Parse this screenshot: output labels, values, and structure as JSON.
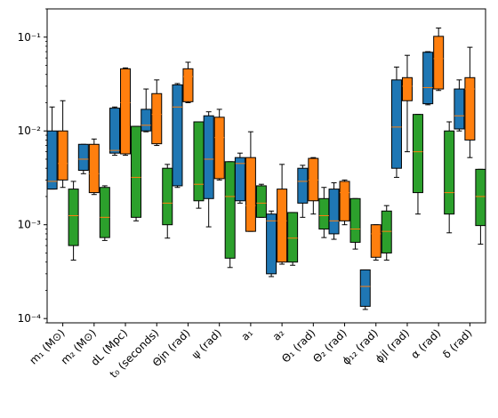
{
  "chart_data": {
    "type": "box",
    "title": "",
    "xlabel": "",
    "ylabel": "",
    "yscale": "log",
    "ylim": [
      9e-05,
      0.2
    ],
    "y_ticks": [
      {
        "value": 0.0001,
        "label": "10⁻⁴"
      },
      {
        "value": 0.001,
        "label": "10⁻³"
      },
      {
        "value": 0.01,
        "label": "10⁻²"
      },
      {
        "value": 0.1,
        "label": "10⁻¹"
      }
    ],
    "grid": false,
    "legend": "none",
    "categories": [
      "m₁ (M⊙)",
      "m₂ (M⊙)",
      "dL (Mpc)",
      "t₀ (seconds)",
      "Θjn (rad)",
      "ψ (rad)",
      "a₁",
      "a₂",
      "Θ₁ (rad)",
      "Θ₂ (rad)",
      "ϕ₁₂ (rad)",
      "ϕjl (rad)",
      "α (rad)",
      "δ (rad)"
    ],
    "colors": [
      "#1f77b4",
      "#ff7f0e",
      "#2ca02c"
    ],
    "median_color": "#ff7f0e",
    "series": [
      {
        "boxes": [
          {
            "wl": 0.0024,
            "q1": 0.0024,
            "med": 0.0029,
            "q3": 0.01,
            "wh": 0.018
          },
          {
            "wl": 0.0035,
            "q1": 0.0038,
            "med": 0.005,
            "q3": 0.0072,
            "wh": 0.0072
          },
          {
            "wl": 0.0055,
            "q1": 0.0058,
            "med": 0.0062,
            "q3": 0.0175,
            "wh": 0.018
          },
          {
            "wl": 0.0098,
            "q1": 0.01,
            "med": 0.0115,
            "q3": 0.017,
            "wh": 0.028
          },
          {
            "wl": 0.0025,
            "q1": 0.0026,
            "med": 0.018,
            "q3": 0.031,
            "wh": 0.032
          },
          {
            "wl": 0.00095,
            "q1": 0.0019,
            "med": 0.005,
            "q3": 0.0145,
            "wh": 0.016
          },
          {
            "wl": 0.0017,
            "q1": 0.0018,
            "med": 0.0045,
            "q3": 0.0052,
            "wh": 0.0058
          },
          {
            "wl": 0.00028,
            "q1": 0.0003,
            "med": 0.0011,
            "q3": 0.0013,
            "wh": 0.0014
          },
          {
            "wl": 0.0012,
            "q1": 0.0017,
            "med": 0.0029,
            "q3": 0.004,
            "wh": 0.0043
          },
          {
            "wl": 0.0007,
            "q1": 0.0008,
            "med": 0.0011,
            "q3": 0.0024,
            "wh": 0.0028
          },
          {
            "wl": 0.000125,
            "q1": 0.000135,
            "med": 0.00022,
            "q3": 0.00033,
            "wh": 0.00033
          },
          {
            "wl": 0.0032,
            "q1": 0.004,
            "med": 0.011,
            "q3": 0.035,
            "wh": 0.048
          },
          {
            "wl": 0.019,
            "q1": 0.0195,
            "med": 0.029,
            "q3": 0.069,
            "wh": 0.07
          },
          {
            "wl": 0.01,
            "q1": 0.0105,
            "med": 0.0145,
            "q3": 0.028,
            "wh": 0.035
          }
        ]
      },
      {
        "boxes": [
          {
            "wl": 0.0025,
            "q1": 0.003,
            "med": 0.0045,
            "q3": 0.01,
            "wh": 0.021
          },
          {
            "wl": 0.0021,
            "q1": 0.0022,
            "med": 0.0035,
            "q3": 0.0072,
            "wh": 0.0082
          },
          {
            "wl": 0.0055,
            "q1": 0.0057,
            "med": 0.02,
            "q3": 0.046,
            "wh": 0.047
          },
          {
            "wl": 0.007,
            "q1": 0.0073,
            "med": 0.015,
            "q3": 0.025,
            "wh": 0.035
          },
          {
            "wl": 0.02,
            "q1": 0.0205,
            "med": 0.038,
            "q3": 0.046,
            "wh": 0.054
          },
          {
            "wl": 0.003,
            "q1": 0.0031,
            "med": 0.0085,
            "q3": 0.014,
            "wh": 0.017
          },
          {
            "wl": 0.00085,
            "q1": 0.00085,
            "med": 0.0016,
            "q3": 0.0052,
            "wh": 0.0098
          },
          {
            "wl": 0.00038,
            "q1": 0.0004,
            "med": 0.0011,
            "q3": 0.0024,
            "wh": 0.0044
          },
          {
            "wl": 0.0013,
            "q1": 0.0018,
            "med": 0.003,
            "q3": 0.0051,
            "wh": 0.0052
          },
          {
            "wl": 0.001,
            "q1": 0.0011,
            "med": 0.0022,
            "q3": 0.0029,
            "wh": 0.003
          },
          {
            "wl": 0.00042,
            "q1": 0.00045,
            "med": 0.0008,
            "q3": 0.001,
            "wh": 0.001
          },
          {
            "wl": 0.006,
            "q1": 0.021,
            "med": 0.03,
            "q3": 0.037,
            "wh": 0.064
          },
          {
            "wl": 0.027,
            "q1": 0.028,
            "med": 0.059,
            "q3": 0.102,
            "wh": 0.125
          },
          {
            "wl": 0.0052,
            "q1": 0.008,
            "med": 0.028,
            "q3": 0.037,
            "wh": 0.078
          }
        ]
      },
      {
        "boxes": [
          {
            "wl": 0.00042,
            "q1": 0.0006,
            "med": 0.00125,
            "q3": 0.0024,
            "wh": 0.0029
          },
          {
            "wl": 0.00068,
            "q1": 0.00073,
            "med": 0.0012,
            "q3": 0.0025,
            "wh": 0.0026
          },
          {
            "wl": 0.0011,
            "q1": 0.0012,
            "med": 0.0032,
            "q3": 0.0112,
            "wh": 0.0112
          },
          {
            "wl": 0.00072,
            "q1": 0.001,
            "med": 0.0017,
            "q3": 0.004,
            "wh": 0.0044
          },
          {
            "wl": 0.0015,
            "q1": 0.0018,
            "med": 0.0027,
            "q3": 0.0125,
            "wh": 0.0125
          },
          {
            "wl": 0.00035,
            "q1": 0.00044,
            "med": 0.002,
            "q3": 0.0047,
            "wh": 0.0047
          },
          {
            "wl": 0.0012,
            "q1": 0.0012,
            "med": 0.0017,
            "q3": 0.0026,
            "wh": 0.0027
          },
          {
            "wl": 0.00037,
            "q1": 0.0004,
            "med": 0.00072,
            "q3": 0.00135,
            "wh": 0.00135
          },
          {
            "wl": 0.00073,
            "q1": 0.0009,
            "med": 0.00125,
            "q3": 0.0019,
            "wh": 0.0025
          },
          {
            "wl": 0.00055,
            "q1": 0.00065,
            "med": 0.0009,
            "q3": 0.0019,
            "wh": 0.0019
          },
          {
            "wl": 0.00042,
            "q1": 0.0005,
            "med": 0.00085,
            "q3": 0.0014,
            "wh": 0.0016
          },
          {
            "wl": 0.0013,
            "q1": 0.0022,
            "med": 0.006,
            "q3": 0.015,
            "wh": 0.015
          },
          {
            "wl": 0.00082,
            "q1": 0.0013,
            "med": 0.0022,
            "q3": 0.01,
            "wh": 0.0125
          },
          {
            "wl": 0.00062,
            "q1": 0.00098,
            "med": 0.002,
            "q3": 0.0039,
            "wh": 0.0039
          }
        ]
      }
    ]
  }
}
